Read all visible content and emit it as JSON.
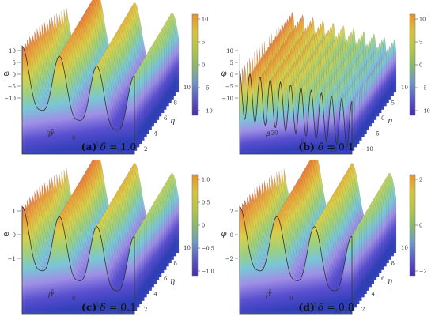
{
  "figure": {
    "panels": [
      {
        "caption": {
          "letter": "(a)",
          "symbol": "δ",
          "eq": "= 1.0"
        },
        "z_axis_label": "φ",
        "x_axis_label": "ρ",
        "y_axis_label": "η",
        "z_ticks": [
          "10",
          "5",
          "0",
          "−5",
          "−10"
        ],
        "x_ticks": [
          "−5",
          "0",
          "5",
          "10"
        ],
        "y_ticks": [
          "2",
          "4",
          "6",
          "8",
          "10"
        ],
        "colorbar_ticks": [
          "10",
          "5",
          "0",
          "−5",
          "−10"
        ],
        "surface": {
          "amplitude": 10,
          "periods": 3,
          "style": "smooth"
        }
      },
      {
        "caption": {
          "letter": "(b)",
          "symbol": "δ",
          "eq": "= 0.1"
        },
        "z_axis_label": "φ",
        "x_axis_label": "ρ",
        "y_axis_label": "η",
        "z_ticks": [
          "10",
          "5",
          "0",
          "−5",
          "−10"
        ],
        "x_ticks": [
          "−20",
          "0",
          "20"
        ],
        "y_ticks": [
          "−10",
          "−5",
          "0",
          "5",
          "10"
        ],
        "colorbar_ticks": [
          "10",
          "5",
          "0",
          "−5",
          "−10"
        ],
        "surface": {
          "amplitude": 10,
          "periods": 11,
          "style": "spiky"
        }
      },
      {
        "caption": {
          "letter": "(c)",
          "symbol": "δ",
          "eq": "= 0.1"
        },
        "z_axis_label": "φ",
        "x_axis_label": "ρ",
        "y_axis_label": "η",
        "z_ticks": [
          "1",
          "0",
          "−1"
        ],
        "x_ticks": [
          "−5",
          "0",
          "5",
          "10"
        ],
        "y_ticks": [
          "2",
          "4",
          "6",
          "8",
          "10"
        ],
        "colorbar_ticks": [
          "1.0",
          "0.5",
          "0",
          "−0.5",
          "−1.0"
        ],
        "surface": {
          "amplitude": 1,
          "periods": 3,
          "style": "smooth"
        }
      },
      {
        "caption": {
          "letter": "(d)",
          "symbol": "δ",
          "eq": "= 0.8"
        },
        "z_axis_label": "φ",
        "x_axis_label": "ρ",
        "y_axis_label": "η",
        "z_ticks": [
          "2",
          "0",
          "−2"
        ],
        "x_ticks": [
          "−5",
          "0",
          "5",
          "10"
        ],
        "y_ticks": [
          "2",
          "4",
          "6",
          "8",
          "10"
        ],
        "colorbar_ticks": [
          "2",
          "0",
          "−2"
        ],
        "surface": {
          "amplitude": 3,
          "periods": 3,
          "style": "smooth"
        }
      }
    ],
    "colors": {
      "colorbar_stops": [
        "#e8912c",
        "#d8c23a",
        "#b7c648",
        "#8bb86a",
        "#6f99c1",
        "#5b5bc8",
        "#4a2aa8"
      ],
      "surface_stops": [
        "#e26a3c",
        "#eaa23a",
        "#d8cf4a",
        "#9fd07a",
        "#79c7d6",
        "#9f8ee6",
        "#5a4fd0",
        "#2f3fb8"
      ]
    }
  }
}
